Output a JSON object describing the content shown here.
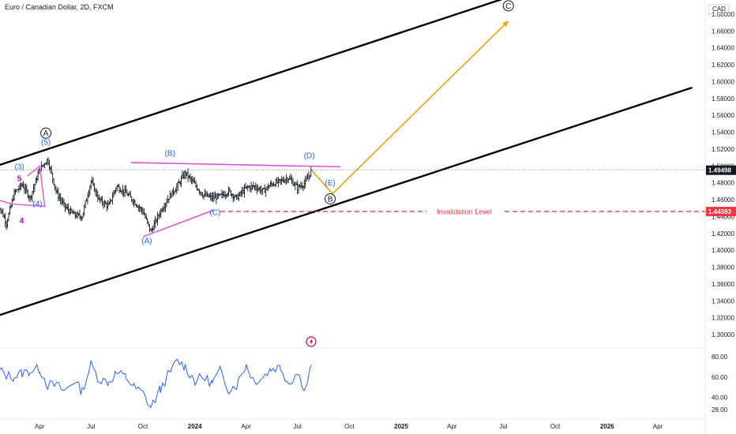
{
  "header": {
    "title": "Euro / Canadian Dollar, 2D, FXCM"
  },
  "colors": {
    "price": "#131722",
    "channel": "#000000",
    "projection": "#f2a010",
    "triangle": "#e052e0",
    "invalidation": "#f23645",
    "rsi": "#2962ff",
    "wave_blue": "#2962ff",
    "wave_magenta": "#b800b8",
    "grid": "#e6e9ef"
  },
  "chart_data": [
    {
      "type": "line",
      "subtype": "ohlc-bars",
      "title": "",
      "currency_label": "CAD",
      "y_ticks": [
        "1.68000",
        "1.66000",
        "1.64000",
        "1.62000",
        "1.60000",
        "1.58000",
        "1.56000",
        "1.54000",
        "1.52000",
        "1.50000",
        "1.48000",
        "1.46000",
        "1.44000",
        "1.42000",
        "1.40000",
        "1.38000",
        "1.36000",
        "1.34000",
        "1.32000",
        "1.30000"
      ],
      "ylim": [
        1.285,
        1.695
      ],
      "x_ticks": [
        "Apr",
        "Jul",
        "Oct",
        "2024",
        "Apr",
        "Jul",
        "Oct",
        "2025",
        "Apr",
        "Jul",
        "Oct",
        "2026",
        "Apr"
      ],
      "x_tick_months": [
        "2023-04",
        "2023-07",
        "2023-10",
        "2024-01",
        "2024-04",
        "2024-07",
        "2024-10",
        "2025-01",
        "2025-04",
        "2025-07",
        "2025-10",
        "2026-01",
        "2026-04"
      ],
      "series": [
        {
          "name": "",
          "x": [
            "2023-01-16",
            "2023-02-01",
            "2023-02-15",
            "2023-03-01",
            "2023-03-15",
            "2023-04-01",
            "2023-04-15",
            "2023-05-01",
            "2023-05-15",
            "2023-06-01",
            "2023-06-15",
            "2023-07-01",
            "2023-07-15",
            "2023-08-01",
            "2023-08-15",
            "2023-09-01",
            "2023-09-15",
            "2023-10-01",
            "2023-10-15",
            "2023-11-01",
            "2023-11-15",
            "2023-12-01",
            "2023-12-15",
            "2024-01-01",
            "2024-01-15",
            "2024-02-01",
            "2024-02-15",
            "2024-03-01",
            "2024-03-15",
            "2024-04-01",
            "2024-04-15",
            "2024-05-01",
            "2024-05-15",
            "2024-06-01",
            "2024-06-15",
            "2024-07-01",
            "2024-07-15",
            "2024-07-26"
          ],
          "values": [
            1.458,
            1.432,
            1.468,
            1.478,
            1.462,
            1.496,
            1.508,
            1.468,
            1.452,
            1.442,
            1.44,
            1.482,
            1.46,
            1.452,
            1.476,
            1.468,
            1.458,
            1.446,
            1.422,
            1.446,
            1.462,
            1.476,
            1.492,
            1.478,
            1.466,
            1.462,
            1.464,
            1.47,
            1.462,
            1.474,
            1.476,
            1.47,
            1.478,
            1.482,
            1.486,
            1.474,
            1.48,
            1.495
          ]
        }
      ],
      "last_price": "1.49498",
      "invalidation_price": "1.44593",
      "invalidation_label": "Invalidation Level",
      "wave_labels": {
        "blue": [
          "(5)",
          "(3)",
          "(4)",
          "(B)",
          "(A)",
          "(C)",
          "(D)",
          "(E)"
        ],
        "magenta": [
          "5",
          "4"
        ],
        "circled": [
          "A",
          "B",
          "C"
        ]
      },
      "channel": {
        "upper": [
          [
            "2023-01-01",
            1.497
          ],
          [
            "2025-09-01",
            1.712
          ]
        ],
        "lower": [
          [
            "2023-01-01",
            1.319
          ],
          [
            "2026-06-01",
            1.593
          ]
        ]
      },
      "projection_path": [
        [
          "2024-07-26",
          1.495
        ],
        [
          "2024-09-01",
          1.467
        ],
        [
          "2025-07-10",
          1.672
        ]
      ],
      "triangle_lines": {
        "upper": [
          [
            "2023-09-10",
            1.504
          ],
          [
            "2024-09-15",
            1.499
          ]
        ],
        "lower": [
          [
            "2023-10-01",
            1.416
          ],
          [
            "2024-02-05",
            1.448
          ]
        ]
      },
      "grid": false
    },
    {
      "type": "line",
      "title": "",
      "y_ticks": [
        "80.00",
        "60.00",
        "40.00",
        "28.00"
      ],
      "ylim": [
        25,
        85
      ],
      "series": [
        {
          "name": "",
          "x": [
            "2023-01-16",
            "2023-02-01",
            "2023-02-15",
            "2023-03-01",
            "2023-03-15",
            "2023-04-01",
            "2023-04-15",
            "2023-05-01",
            "2023-05-15",
            "2023-06-01",
            "2023-06-15",
            "2023-07-01",
            "2023-07-15",
            "2023-08-01",
            "2023-08-15",
            "2023-09-01",
            "2023-09-15",
            "2023-10-01",
            "2023-10-15",
            "2023-11-01",
            "2023-11-15",
            "2023-12-01",
            "2023-12-15",
            "2024-01-01",
            "2024-01-15",
            "2024-02-01",
            "2024-02-15",
            "2024-03-01",
            "2024-03-15",
            "2024-04-01",
            "2024-04-15",
            "2024-05-01",
            "2024-05-15",
            "2024-06-01",
            "2024-06-15",
            "2024-07-01",
            "2024-07-15",
            "2024-07-26"
          ],
          "values": [
            68,
            62,
            60,
            64,
            66,
            68,
            52,
            52,
            46,
            56,
            46,
            72,
            58,
            55,
            64,
            60,
            50,
            44,
            30,
            48,
            62,
            76,
            70,
            56,
            60,
            54,
            66,
            48,
            52,
            72,
            56,
            60,
            68,
            70,
            54,
            64,
            48,
            72
          ]
        }
      ]
    }
  ]
}
